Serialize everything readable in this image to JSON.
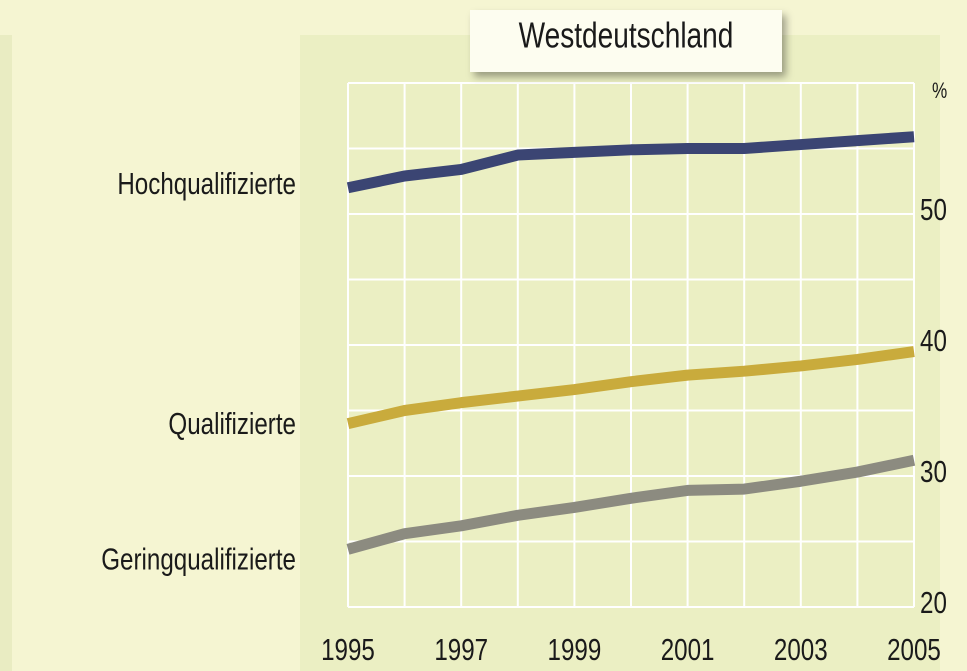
{
  "chart_data": {
    "type": "line",
    "title": "Westdeutschland",
    "ylabel": "%",
    "x": [
      1995,
      1996,
      1997,
      1998,
      1999,
      2000,
      2001,
      2002,
      2003,
      2004,
      2005
    ],
    "xlim": [
      1995,
      2005
    ],
    "xticks": [
      1995,
      1997,
      1999,
      2001,
      2003,
      2005
    ],
    "minor_xticks": [
      1996,
      1998,
      2000,
      2002,
      2004
    ],
    "ylim": [
      20,
      60
    ],
    "yticks": [
      20,
      30,
      40,
      50
    ],
    "minor_yticks": [
      25,
      35,
      45,
      55,
      60
    ],
    "grid": true,
    "series": [
      {
        "name": "Hochqualifizierte",
        "color": "#3b4573",
        "values": [
          52.0,
          52.9,
          53.4,
          54.5,
          54.7,
          54.9,
          55.0,
          55.0,
          55.3,
          55.6,
          55.9
        ]
      },
      {
        "name": "Qualifizierte",
        "color": "#c9ab3c",
        "values": [
          34.0,
          35.0,
          35.6,
          36.1,
          36.6,
          37.2,
          37.7,
          38.0,
          38.4,
          38.9,
          39.5
        ]
      },
      {
        "name": "Geringqualifizierte",
        "color": "#8c8b80",
        "values": [
          24.4,
          25.6,
          26.2,
          27.0,
          27.6,
          28.3,
          28.9,
          29.0,
          29.6,
          30.3,
          31.2
        ]
      }
    ]
  }
}
